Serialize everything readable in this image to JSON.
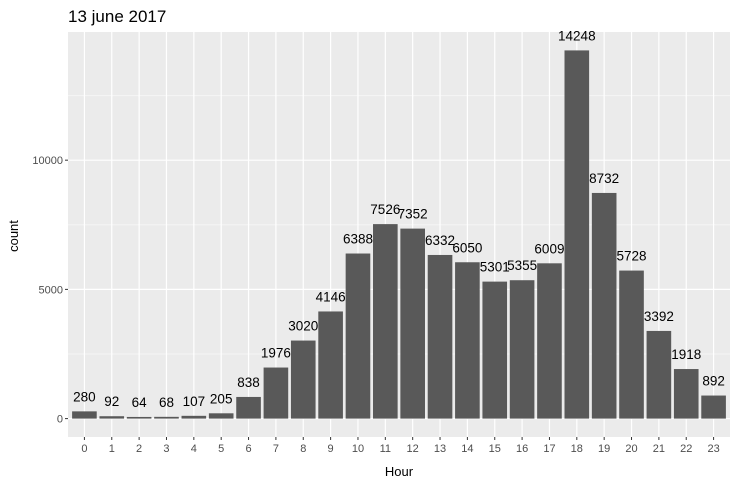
{
  "chart_data": {
    "type": "bar",
    "title": "13 june 2017",
    "xlabel": "Hour",
    "ylabel": "count",
    "categories": [
      "0",
      "1",
      "2",
      "3",
      "4",
      "5",
      "6",
      "7",
      "8",
      "9",
      "10",
      "11",
      "12",
      "13",
      "14",
      "15",
      "16",
      "17",
      "18",
      "19",
      "20",
      "21",
      "22",
      "23"
    ],
    "values": [
      280,
      92,
      64,
      68,
      107,
      205,
      838,
      1976,
      3020,
      4146,
      6388,
      7526,
      7352,
      6332,
      6050,
      5301,
      5355,
      6009,
      14248,
      8732,
      5728,
      3392,
      1918,
      892
    ],
    "data_labels": [
      "280",
      "92",
      "64",
      "68",
      "107",
      "205",
      "838",
      "1976",
      "3020",
      "4146",
      "6388",
      "7526",
      "7352",
      "6332",
      "6050",
      "5301",
      "5355",
      "6009",
      "14248",
      "8732",
      "5728",
      "3392",
      "1918",
      "892"
    ],
    "yticks": [
      0,
      5000,
      10000
    ],
    "ytick_labels": [
      "0",
      "5000",
      "10000"
    ],
    "ylim": [
      -712,
      14960
    ],
    "grid": true,
    "colors": {
      "bar": "#595959",
      "panel": "#ebebeb",
      "grid_major": "#ffffff",
      "grid_minor": "#f5f5f5"
    }
  }
}
